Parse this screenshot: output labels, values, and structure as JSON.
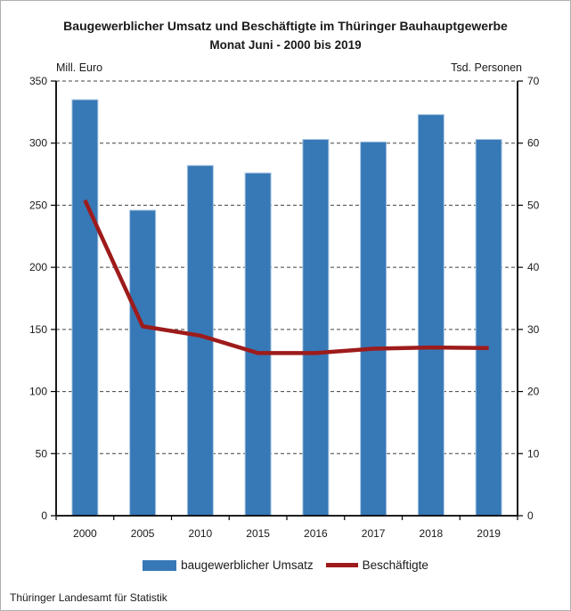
{
  "chart_data": {
    "type": "bar",
    "title": "Baugewerblicher Umsatz und Beschäftigte im Thüringer Bauhauptgewerbe",
    "subtitle": "Monat Juni - 2000 bis 2019",
    "categories": [
      "2000",
      "2005",
      "2010",
      "2015",
      "2016",
      "2017",
      "2018",
      "2019"
    ],
    "series": [
      {
        "name": "baugewerblicher Umsatz",
        "type": "bar",
        "axis": "left",
        "color": "#3778B6",
        "edge_color": "#A9C7E3",
        "values": [
          335,
          246,
          282,
          276,
          303,
          301,
          323,
          303
        ]
      },
      {
        "name": "Beschäftigte",
        "type": "line",
        "axis": "right",
        "color": "#9E1B1B",
        "values": [
          50.8,
          30.5,
          29.0,
          26.2,
          26.2,
          26.9,
          27.1,
          27.0
        ]
      }
    ],
    "left_axis": {
      "label": "Mill. Euro",
      "min": 0,
      "max": 350,
      "tick_step": 50,
      "ticks": [
        0,
        50,
        100,
        150,
        200,
        250,
        300,
        350
      ]
    },
    "right_axis": {
      "label": "Tsd. Personen",
      "min": 0,
      "max": 70,
      "tick_step": 10,
      "ticks": [
        0,
        10,
        20,
        30,
        40,
        50,
        60,
        70
      ]
    },
    "grid": {
      "horizontal": "dashed",
      "color": "#404040"
    },
    "legend_position": "bottom",
    "source": "Thüringer Landesamt für Statistik"
  }
}
